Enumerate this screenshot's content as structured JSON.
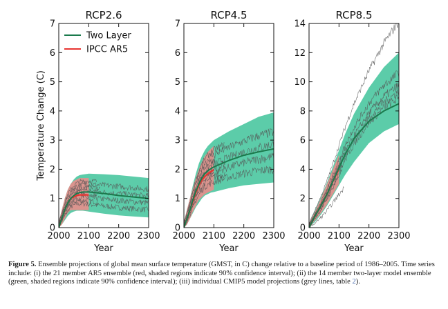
{
  "chart_data": [
    {
      "type": "line",
      "title": "RCP2.6",
      "xlabel": "Year",
      "ylabel": "Temperature Change (C)",
      "xlim": [
        2000,
        2300
      ],
      "ylim": [
        0,
        7
      ],
      "xticks": [
        "2000",
        "2100",
        "2200",
        "2300"
      ],
      "yticks": [
        "0",
        "1",
        "2",
        "3",
        "4",
        "5",
        "6",
        "7"
      ],
      "legend": {
        "position": "top-left",
        "entries": [
          "Two Layer",
          "IPCC AR5"
        ]
      },
      "series": [
        {
          "name": "Two Layer",
          "color": "#1a7a4c",
          "x": [
            2000,
            2010,
            2020,
            2030,
            2040,
            2050,
            2060,
            2070,
            2080,
            2100,
            2150,
            2200,
            2250,
            2300
          ],
          "y": [
            0.0,
            0.3,
            0.6,
            0.85,
            1.0,
            1.1,
            1.17,
            1.2,
            1.22,
            1.22,
            1.17,
            1.1,
            1.05,
            1.0
          ],
          "band_low": [
            0.0,
            0.1,
            0.25,
            0.4,
            0.5,
            0.55,
            0.58,
            0.58,
            0.58,
            0.55,
            0.48,
            0.42,
            0.38,
            0.35
          ],
          "band_high": [
            0.2,
            0.6,
            1.0,
            1.3,
            1.5,
            1.65,
            1.75,
            1.8,
            1.82,
            1.85,
            1.83,
            1.8,
            1.75,
            1.7
          ]
        },
        {
          "name": "IPCC AR5",
          "color": "#e8332f",
          "x": [
            2000,
            2010,
            2020,
            2030,
            2040,
            2050,
            2060,
            2070,
            2080,
            2090,
            2100
          ],
          "y": [
            0.0,
            0.3,
            0.6,
            0.85,
            1.0,
            1.05,
            1.1,
            1.12,
            1.12,
            1.12,
            1.12
          ],
          "band_low": [
            0.0,
            0.1,
            0.3,
            0.5,
            0.6,
            0.6,
            0.6,
            0.6,
            0.6,
            0.6,
            0.6
          ],
          "band_high": [
            0.2,
            0.6,
            1.0,
            1.3,
            1.5,
            1.6,
            1.65,
            1.7,
            1.7,
            1.7,
            1.7
          ]
        }
      ]
    },
    {
      "type": "line",
      "title": "RCP4.5",
      "xlabel": "Year",
      "ylabel": "",
      "xlim": [
        2000,
        2300
      ],
      "ylim": [
        0,
        7
      ],
      "xticks": [
        "2000",
        "2100",
        "2200",
        "2300"
      ],
      "yticks": [
        "0",
        "1",
        "2",
        "3",
        "4",
        "5",
        "6",
        "7"
      ],
      "series": [
        {
          "name": "Two Layer",
          "color": "#1a7a4c",
          "x": [
            2000,
            2010,
            2020,
            2030,
            2040,
            2050,
            2060,
            2070,
            2080,
            2090,
            2100,
            2150,
            2200,
            2250,
            2300
          ],
          "y": [
            0.0,
            0.3,
            0.6,
            0.95,
            1.25,
            1.5,
            1.7,
            1.85,
            1.95,
            2.02,
            2.08,
            2.3,
            2.48,
            2.6,
            2.7
          ],
          "band_low": [
            0.0,
            0.1,
            0.3,
            0.5,
            0.7,
            0.85,
            1.0,
            1.1,
            1.15,
            1.2,
            1.22,
            1.35,
            1.45,
            1.5,
            1.55
          ],
          "band_high": [
            0.2,
            0.6,
            1.0,
            1.45,
            1.85,
            2.2,
            2.45,
            2.65,
            2.8,
            2.9,
            3.0,
            3.3,
            3.55,
            3.8,
            3.95
          ]
        },
        {
          "name": "IPCC AR5",
          "color": "#e8332f",
          "x": [
            2000,
            2010,
            2020,
            2030,
            2040,
            2050,
            2060,
            2070,
            2080,
            2090,
            2100
          ],
          "y": [
            0.0,
            0.3,
            0.6,
            0.9,
            1.2,
            1.45,
            1.62,
            1.75,
            1.85,
            1.92,
            1.98
          ],
          "band_low": [
            0.0,
            0.1,
            0.3,
            0.55,
            0.75,
            0.95,
            1.05,
            1.15,
            1.2,
            1.25,
            1.3
          ],
          "band_high": [
            0.2,
            0.6,
            1.0,
            1.35,
            1.7,
            2.0,
            2.25,
            2.45,
            2.6,
            2.7,
            2.8
          ]
        }
      ]
    },
    {
      "type": "line",
      "title": "RCP8.5",
      "xlabel": "Year",
      "ylabel": "",
      "xlim": [
        2000,
        2300
      ],
      "ylim": [
        0,
        14
      ],
      "xticks": [
        "2000",
        "2100",
        "2200",
        "2300"
      ],
      "yticks": [
        "0",
        "2",
        "4",
        "6",
        "8",
        "10",
        "12",
        "14"
      ],
      "series": [
        {
          "name": "Two Layer",
          "color": "#1a7a4c",
          "x": [
            2000,
            2020,
            2040,
            2060,
            2080,
            2100,
            2120,
            2150,
            2200,
            2250,
            2300
          ],
          "y": [
            0.0,
            0.8,
            1.5,
            2.3,
            3.2,
            4.1,
            5.0,
            6.1,
            7.3,
            8.0,
            8.5
          ],
          "band_low": [
            0.0,
            0.4,
            0.9,
            1.5,
            2.2,
            2.9,
            3.6,
            4.5,
            5.8,
            6.6,
            7.1
          ],
          "band_high": [
            0.3,
            1.2,
            2.1,
            3.1,
            4.2,
            5.3,
            6.4,
            7.8,
            9.6,
            11.0,
            12.0
          ]
        },
        {
          "name": "IPCC AR5",
          "color": "#e8332f",
          "x": [
            2000,
            2020,
            2040,
            2060,
            2080,
            2100
          ],
          "y": [
            0.0,
            0.8,
            1.5,
            2.3,
            3.2,
            4.0
          ],
          "band_low": [
            0.0,
            0.5,
            1.0,
            1.6,
            2.3,
            3.0
          ],
          "band_high": [
            0.3,
            1.1,
            2.0,
            3.0,
            4.0,
            5.0
          ]
        }
      ]
    }
  ],
  "caption": {
    "label": "Figure 5.",
    "text": " Ensemble projections of global mean surface temperature (GMST, in C) change relative to a baseline period of 1986–2005. Time series include: (i) the 21 member AR5 ensemble (red, shaded regions indicate 90% confidence interval); (ii) the 14 member two-layer model ensemble (green, shaded regions indicate 90% confidence interval); (iii) individual CMIP5 model projections (grey lines, table ",
    "ref": "2",
    "end": ")."
  },
  "colors": {
    "two_layer": "#1a7a4c",
    "two_layer_band": "#3fc39a",
    "ipcc": "#e8332f",
    "ipcc_band": "#f08a8a",
    "cmip5": "#555555"
  }
}
